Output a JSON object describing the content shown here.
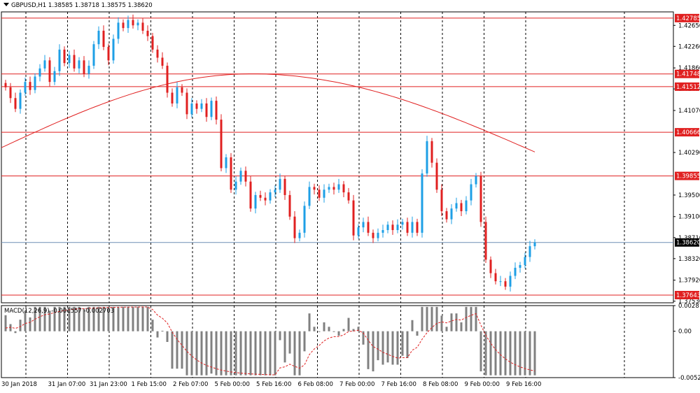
{
  "window": {
    "symbol": "GBPUSD,H1",
    "ohlc": [
      "1.38585",
      "1.38718",
      "1.38575",
      "1.38620"
    ]
  },
  "colors": {
    "bull": "#1e9fe6",
    "bear": "#e02020",
    "level": "#e02020",
    "ma": "#e02020",
    "current": "#6f8fb5",
    "grid": "#000000",
    "histogram": "#808080",
    "signal": "#e02020"
  },
  "price_scale": {
    "ticks": [
      "1.42650",
      "1.42260",
      "1.41860",
      "1.41470",
      "1.41070",
      "1.40290",
      "1.39500",
      "1.39100",
      "1.38710",
      "1.38320",
      "1.37920",
      "1.37530"
    ],
    "levels": [
      "1.42785",
      "1.41748",
      "1.41512",
      "1.40666",
      "1.39855",
      "1.37643"
    ],
    "current_price": "1.38620"
  },
  "time_axis": {
    "labels": [
      "30 Jan 2018",
      "31 Jan 07:00",
      "31 Jan 23:00",
      "1 Feb 15:00",
      "2 Feb 07:00",
      "5 Feb 00:00",
      "5 Feb 16:00",
      "6 Feb 08:00",
      "7 Feb 00:00",
      "7 Feb 16:00",
      "8 Feb 08:00",
      "9 Feb 00:00",
      "9 Feb 16:00"
    ]
  },
  "macd": {
    "label": "MACD(12,26,9) -0.001557 -0.002703",
    "ticks": [
      "0.002879",
      "0.00",
      "-0.005202"
    ]
  },
  "chart_data": {
    "type": "candlestick",
    "symbol": "GBPUSD",
    "timeframe": "H1",
    "close_path": [
      1.415,
      1.413,
      1.411,
      1.414,
      1.416,
      1.4145,
      1.417,
      1.4185,
      1.42,
      1.416,
      1.418,
      1.422,
      1.4195,
      1.421,
      1.4185,
      1.42,
      1.4175,
      1.419,
      1.423,
      1.4255,
      1.4225,
      1.42,
      1.424,
      1.427,
      1.426,
      1.4275,
      1.4265,
      1.427,
      1.4255,
      1.4245,
      1.422,
      1.4205,
      1.419,
      1.414,
      1.412,
      1.415,
      1.414,
      1.41,
      1.412,
      1.411,
      1.412,
      1.4095,
      1.4125,
      1.409,
      1.4,
      1.402,
      1.396,
      1.3975,
      1.3995,
      1.3975,
      1.3925,
      1.395,
      1.3945,
      1.394,
      1.3955,
      1.396,
      1.398,
      1.395,
      1.391,
      1.387,
      1.388,
      1.393,
      1.3965,
      1.396,
      1.3945,
      1.396,
      1.3965,
      1.396,
      1.397,
      1.3955,
      1.394,
      1.3875,
      1.389,
      1.39,
      1.388,
      1.387,
      1.388,
      1.3885,
      1.3895,
      1.3885,
      1.3895,
      1.39,
      1.388,
      1.39,
      1.388,
      1.399,
      1.405,
      1.401,
      1.396,
      1.392,
      1.3905,
      1.3925,
      1.3935,
      1.392,
      1.394,
      1.397,
      1.3985,
      1.39,
      1.383,
      1.3805,
      1.379,
      1.379,
      1.378,
      1.38,
      1.3815,
      1.382,
      1.3835,
      1.3855,
      1.3862
    ],
    "moving_average": {
      "start": 1.4038,
      "peak": 1.4175,
      "end": 1.403
    },
    "horizontal_levels": [
      1.42785,
      1.41748,
      1.41512,
      1.40666,
      1.39855,
      1.37643
    ],
    "current_price": 1.3862,
    "y_range": [
      1.375,
      1.429
    ],
    "macd_range": [
      -0.005202,
      0.002879
    ],
    "macd_last": -0.001557,
    "signal_last": -0.002703
  }
}
